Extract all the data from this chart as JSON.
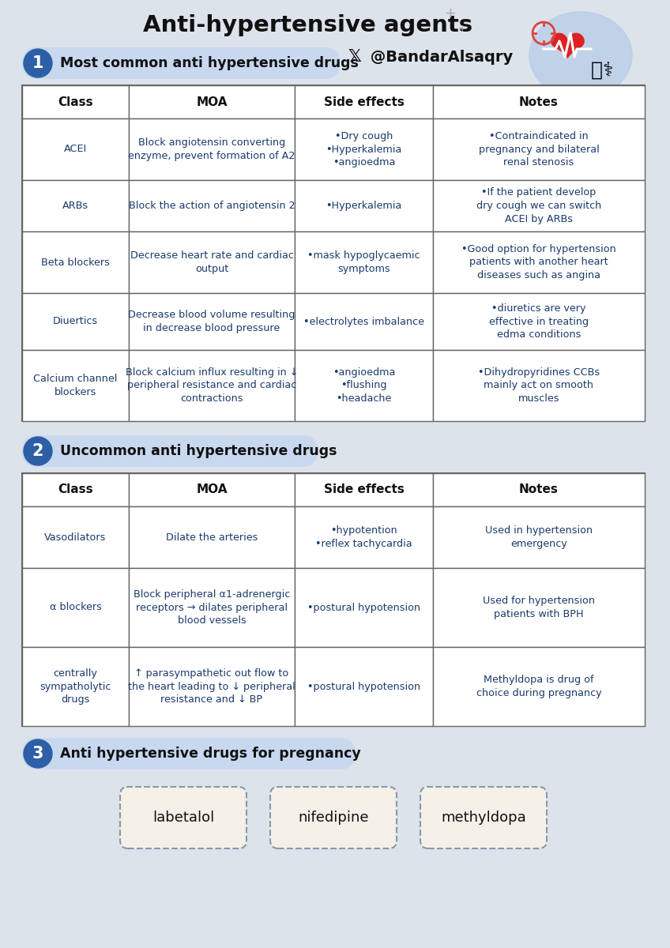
{
  "title": "Anti-hypertensive agents",
  "twitter_text": " @BandarAlsaqry",
  "bg_color": "#dde3ea",
  "header_color": "#111111",
  "cell_text_color": "#1a3a6b",
  "section1_text": "Most common anti hypertensive drugs",
  "section2_text": "Uncommon anti hypertensive drugs",
  "section3_text": "Anti hypertensive drugs for pregnancy",
  "table1_headers": [
    "Class",
    "MOA",
    "Side effects",
    "Notes"
  ],
  "table1_rows": [
    [
      "ACEI",
      "Block angiotensin converting\nenzyme, prevent formation of A2",
      "•Dry cough\n•Hyperkalemia\n•angioedma",
      "•Contraindicated in\npregnancy and bilateral\nrenal stenosis"
    ],
    [
      "ARBs",
      "Block the action of angiotensin 2",
      "•Hyperkalemia",
      "•If the patient develop\ndry cough we can switch\nACEI by ARBs"
    ],
    [
      "Beta blockers",
      "Decrease heart rate and cardiac\noutput",
      "•mask hypoglycaemic\nsymptoms",
      "•Good option for hypertension\npatients with another heart\ndiseases such as angina"
    ],
    [
      "Diuertics",
      "Decrease blood volume resulting\nin decrease blood pressure",
      "•electrolytes imbalance",
      "•diuretics are very\neffective in treating\nedma conditions"
    ],
    [
      "Calcium channel\nblockers",
      "Block calcium influx resulting in ↓\nperipheral resistance and cardiac\ncontractions",
      "•angioedma\n•flushing\n•headache",
      "•Dihydropyridines CCBs\nmainly act on smooth\nmuscles"
    ]
  ],
  "table2_headers": [
    "Class",
    "MOA",
    "Side effects",
    "Notes"
  ],
  "table2_rows": [
    [
      "Vasodilators",
      "Dilate the arteries",
      "•hypotention\n•reflex tachycardia",
      "Used in hypertension\nemergency"
    ],
    [
      "α blockers",
      "Block peripheral α1-adrenergic\nreceptors → dilates peripheral\nblood vessels",
      "•postural hypotension",
      "Used for hypertension\npatients with BPH"
    ],
    [
      "centrally\nsympatholytic\ndrugs",
      "↑ parasympathetic out flow to\nthe heart leading to ↓ peripheral\nresistance and ↓ BP",
      "•postural hypotension",
      "Methyldopa is drug of\nchoice during pregnancy"
    ]
  ],
  "pregnancy_drugs": [
    "labetalol",
    "nifedipine",
    "methyldopa"
  ],
  "section_badge_color": "#2d5fa6",
  "section_pill_color": "#c8d8ef",
  "table_border_color": "#666666"
}
